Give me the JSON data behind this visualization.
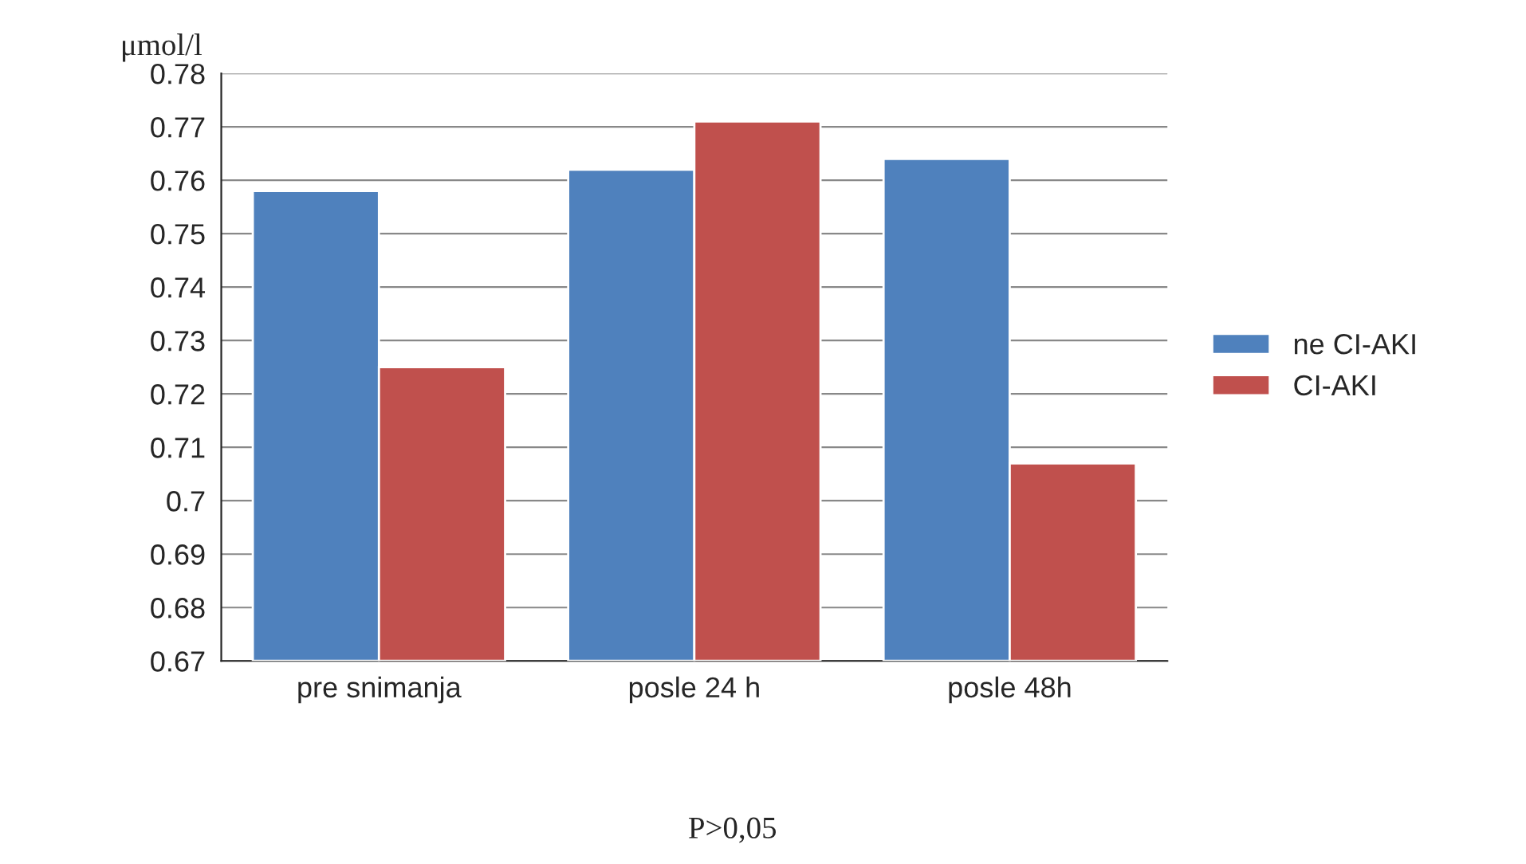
{
  "chart_data": {
    "type": "bar",
    "ylabel": "μmol/l",
    "categories": [
      "pre snimanja",
      "posle 24 h",
      "posle 48h"
    ],
    "series": [
      {
        "name": "ne CI-AKI",
        "color": "#4f81bd",
        "values": [
          0.758,
          0.762,
          0.764
        ]
      },
      {
        "name": "CI-AKI",
        "color": "#c0504d",
        "values": [
          0.725,
          0.771,
          0.707
        ]
      }
    ],
    "ylim": [
      0.67,
      0.78
    ],
    "yticks": [
      0.67,
      0.68,
      0.69,
      0.7,
      0.71,
      0.72,
      0.73,
      0.74,
      0.75,
      0.76,
      0.77,
      0.78
    ],
    "grid": "y",
    "legend": "right",
    "annotations": [
      "P>0,05"
    ]
  }
}
